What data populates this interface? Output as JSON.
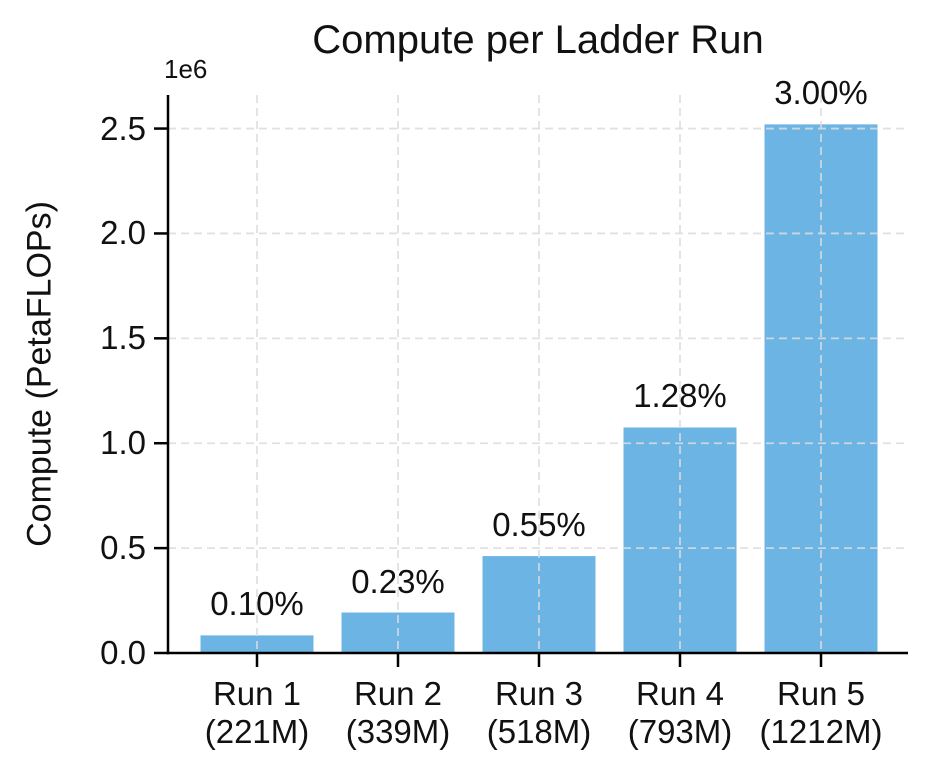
{
  "figure": {
    "background": "#ffffff"
  },
  "chart_data": {
    "type": "bar",
    "title": "Compute per Ladder Run",
    "xlabel": "",
    "ylabel": "Compute (PetaFLOPs)",
    "y_scale_offset_label": "1e6",
    "categories": [
      "Run 1",
      "Run 2",
      "Run 3",
      "Run 4",
      "Run 5"
    ],
    "category_sublabels": [
      "(221M)",
      "(339M)",
      "(518M)",
      "(793M)",
      "(1212M)"
    ],
    "values": [
      84000,
      193000,
      462000,
      1075000,
      2520000
    ],
    "bar_labels": [
      "0.10%",
      "0.23%",
      "0.55%",
      "1.28%",
      "3.00%"
    ],
    "ytick_labels": [
      "0.0",
      "0.5",
      "1.0",
      "1.5",
      "2.0",
      "2.5"
    ],
    "ytick_values": [
      0,
      500000,
      1000000,
      1500000,
      2000000,
      2500000
    ],
    "ylim": [
      0,
      2660000
    ],
    "grid": "dashed",
    "legend": "none",
    "bar_color": "#6CB4E4",
    "grid_color": "#DCDCDC",
    "axis_color": "#000000",
    "text_color": "#111111"
  }
}
